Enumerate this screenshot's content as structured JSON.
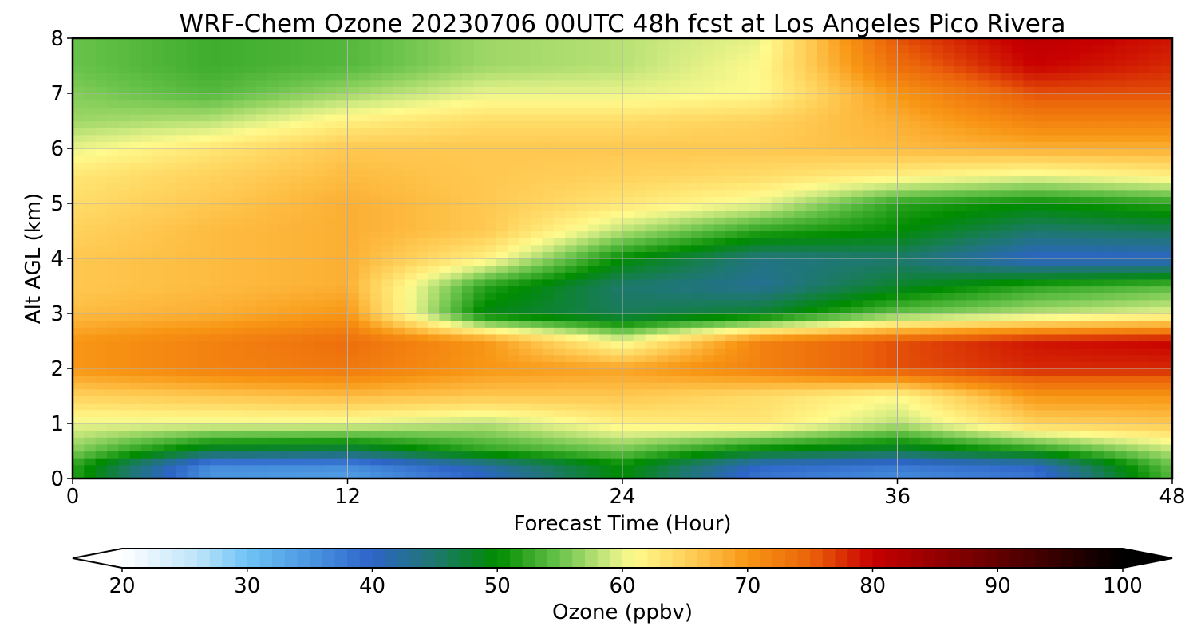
{
  "chart_data": {
    "type": "heatmap",
    "title": "WRF-Chem Ozone  20230706 00UTC 48h fcst at Los Angeles Pico Rivera",
    "xlabel": "Forecast Time (Hour)",
    "ylabel": "Alt AGL (km)",
    "xlim": [
      0,
      48
    ],
    "ylim": [
      0,
      8
    ],
    "x_ticks": [
      "0",
      "12",
      "24",
      "36",
      "48"
    ],
    "y_ticks": [
      "0",
      "1",
      "2",
      "3",
      "4",
      "5",
      "6",
      "7",
      "8"
    ],
    "grid": true,
    "x": [
      0,
      6,
      12,
      18,
      24,
      30,
      36,
      42,
      48
    ],
    "y": [
      0,
      0.25,
      0.5,
      1,
      1.5,
      2,
      2.5,
      3,
      3.5,
      4,
      4.5,
      5,
      5.5,
      6,
      6.5,
      7,
      7.5,
      8
    ],
    "z": [
      [
        52,
        35,
        34,
        40,
        50,
        38,
        36,
        38,
        54
      ],
      [
        52,
        36,
        36,
        42,
        50,
        40,
        38,
        40,
        55
      ],
      [
        56,
        47,
        46,
        52,
        55,
        49,
        47,
        51,
        58
      ],
      [
        60,
        60,
        60,
        58,
        62,
        63,
        58,
        65,
        66
      ],
      [
        65,
        66,
        67,
        66,
        66,
        64,
        61,
        70,
        70
      ],
      [
        70,
        72,
        73,
        70,
        69,
        72,
        76,
        78,
        78
      ],
      [
        70,
        72,
        74,
        70,
        60,
        72,
        76,
        79,
        80
      ],
      [
        67,
        68,
        70,
        49,
        46,
        48,
        55,
        58,
        60
      ],
      [
        66,
        67,
        68,
        52,
        45,
        43,
        48,
        52,
        54
      ],
      [
        66,
        67,
        68,
        62,
        50,
        44,
        45,
        40,
        40
      ],
      [
        65,
        67,
        68,
        66,
        58,
        52,
        50,
        45,
        46
      ],
      [
        64,
        66,
        68,
        66,
        63,
        60,
        52,
        50,
        52
      ],
      [
        63,
        65,
        67,
        66,
        65,
        64,
        62,
        60,
        62
      ],
      [
        60,
        63,
        66,
        66,
        66,
        66,
        67,
        68,
        68
      ],
      [
        57,
        58,
        62,
        64,
        64,
        65,
        68,
        72,
        72
      ],
      [
        56,
        54,
        57,
        60,
        60,
        61,
        70,
        76,
        76
      ],
      [
        55,
        53,
        54,
        57,
        58,
        61,
        74,
        80,
        78
      ],
      [
        55,
        53,
        54,
        57,
        58,
        60,
        76,
        81,
        79
      ]
    ],
    "colorbar": {
      "label": "Ozone  (ppbv)",
      "min": 20,
      "max": 100,
      "extend": "both",
      "ticks": [
        "20",
        "30",
        "40",
        "50",
        "60",
        "70",
        "80",
        "90",
        "100"
      ]
    }
  }
}
